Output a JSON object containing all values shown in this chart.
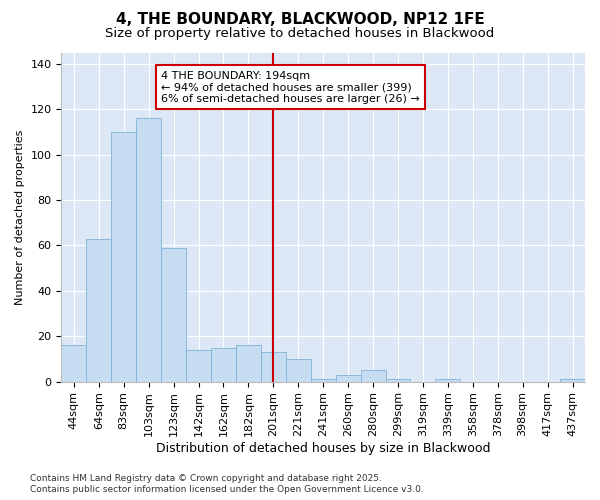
{
  "title1": "4, THE BOUNDARY, BLACKWOOD, NP12 1FE",
  "title2": "Size of property relative to detached houses in Blackwood",
  "xlabel": "Distribution of detached houses by size in Blackwood",
  "ylabel": "Number of detached properties",
  "bar_color": "#c6dcf0",
  "bar_edge_color": "#7fb0d8",
  "vline_color": "#cc0000",
  "vline_x": 8,
  "annotation_text": "4 THE BOUNDARY: 194sqm\n← 94% of detached houses are smaller (399)\n6% of semi-detached houses are larger (26) →",
  "annotation_box_color": "#ffffff",
  "annotation_box_edge": "#cc0000",
  "background_color": "#dce8f5",
  "categories": [
    "44sqm",
    "64sqm",
    "83sqm",
    "103sqm",
    "123sqm",
    "142sqm",
    "162sqm",
    "182sqm",
    "201sqm",
    "221sqm",
    "241sqm",
    "260sqm",
    "280sqm",
    "299sqm",
    "319sqm",
    "339sqm",
    "358sqm",
    "378sqm",
    "398sqm",
    "417sqm",
    "437sqm"
  ],
  "values": [
    16,
    63,
    110,
    116,
    59,
    14,
    15,
    16,
    13,
    10,
    1,
    3,
    5,
    1,
    0,
    1,
    0,
    0,
    0,
    0,
    1
  ],
  "ylim": [
    0,
    145
  ],
  "yticks": [
    0,
    20,
    40,
    60,
    80,
    100,
    120,
    140
  ],
  "footnote": "Contains HM Land Registry data © Crown copyright and database right 2025.\nContains public sector information licensed under the Open Government Licence v3.0.",
  "fig_bg_color": "#ffffff",
  "title1_fontsize": 11,
  "title2_fontsize": 9.5,
  "xlabel_fontsize": 9,
  "ylabel_fontsize": 8,
  "tick_fontsize": 8,
  "annot_fontsize": 8,
  "footnote_fontsize": 6.5
}
